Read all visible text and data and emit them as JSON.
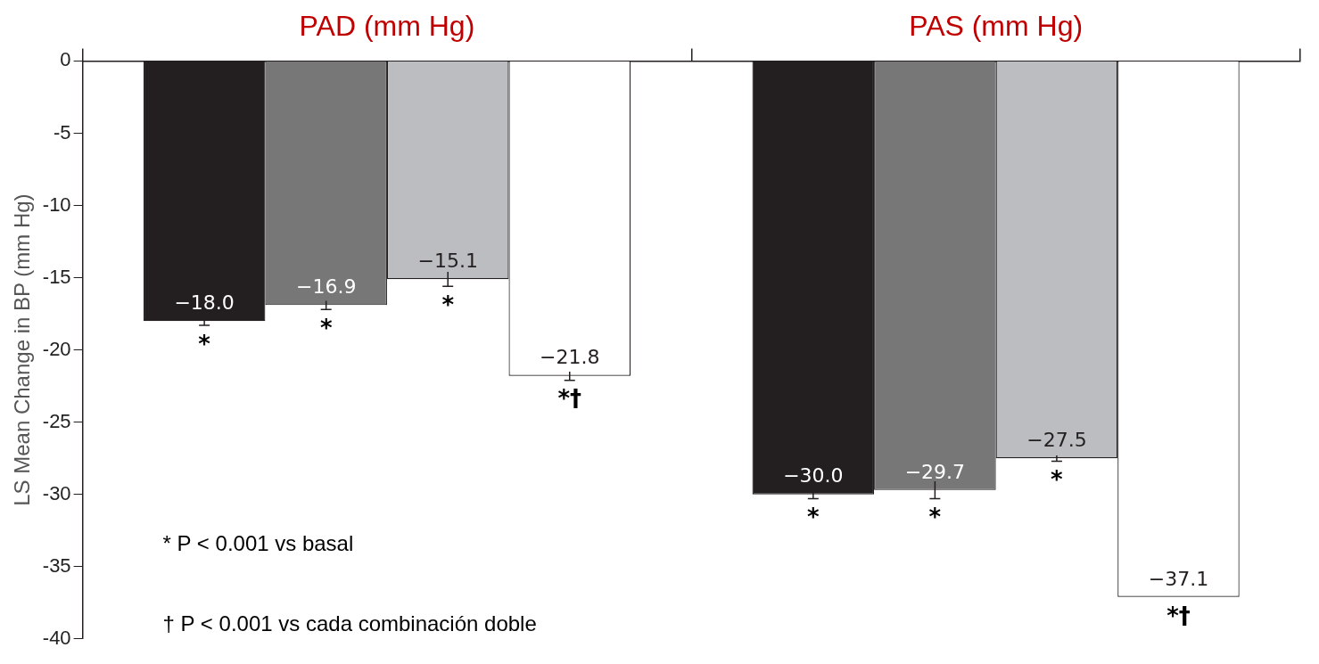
{
  "chart_data": {
    "type": "bar",
    "categories": [
      "PAD (mm Hg)",
      "PAS (mm Hg)"
    ],
    "series": [
      {
        "color": "#231f20",
        "values": [
          -18.0,
          -30.0
        ],
        "errors": [
          0.3,
          0.3
        ],
        "value_labels": [
          "−18.0",
          "−30.0"
        ]
      },
      {
        "color": "#777778",
        "values": [
          -16.9,
          -29.7
        ],
        "errors": [
          0.3,
          0.6
        ],
        "value_labels": [
          "−16.9",
          "−29.7"
        ]
      },
      {
        "color": "#bcbdc0",
        "values": [
          -15.1,
          -27.5
        ],
        "errors": [
          0.5,
          0.2
        ],
        "value_labels": [
          "−15.1",
          "−27.5"
        ]
      },
      {
        "color": "#ffffff",
        "values": [
          -21.8,
          -37.1
        ],
        "errors": [
          0.3,
          null
        ],
        "value_labels": [
          "−21.8",
          "−37.1"
        ]
      }
    ],
    "ylabel": "LS Mean Change in BP (mm Hg)",
    "ylim": [
      -40,
      0
    ],
    "yticks": [
      -40,
      -35,
      -30,
      -25,
      -20,
      -15,
      -10,
      -5,
      0
    ],
    "grid": false,
    "legend": false,
    "annotations": [
      "*",
      "*",
      "*",
      "*†",
      "*",
      "*",
      "*",
      "*†",
      "* P < 0.001 vs basal",
      "† P < 0.001 vs cada combinación doble"
    ]
  }
}
